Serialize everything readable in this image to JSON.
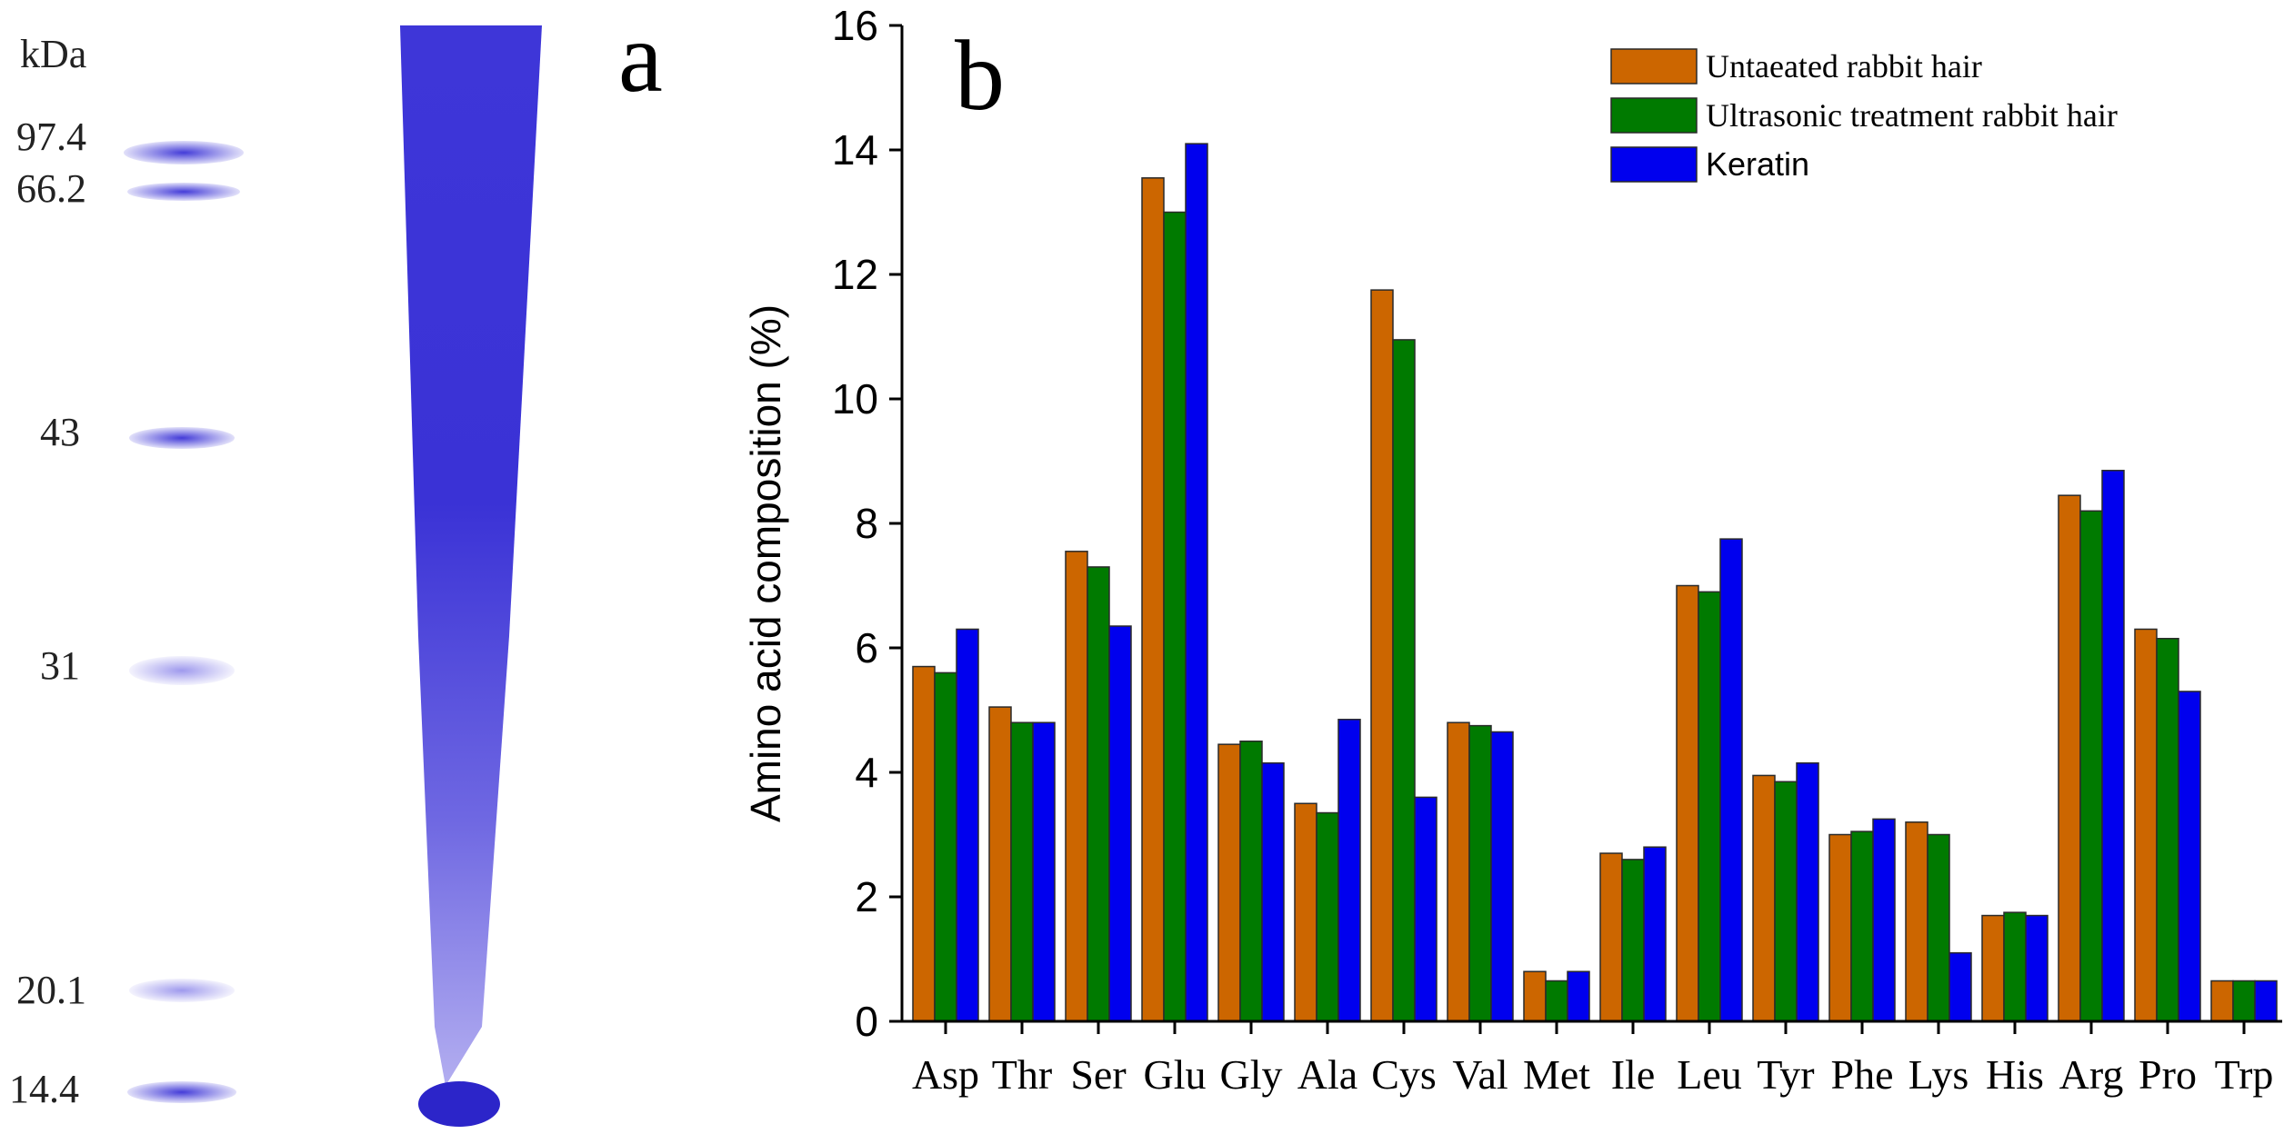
{
  "panel_a": {
    "label": "a",
    "unit": "kDa",
    "markers": [
      "97.4",
      "66.2",
      "43",
      "31",
      "20.1",
      "14.4"
    ],
    "colors": {
      "band": "#3a32d6",
      "lane": "#3b34d8",
      "lane_light": "#b9b5f2"
    }
  },
  "panel_b": {
    "label": "b"
  },
  "chart_data": {
    "type": "bar",
    "title": "",
    "xlabel": "",
    "ylabel": "Amino acid composition (%)",
    "ylim": [
      0,
      16
    ],
    "yticks": [
      "0",
      "2",
      "4",
      "6",
      "8",
      "10",
      "12",
      "14",
      "16"
    ],
    "categories": [
      "Asp",
      "Thr",
      "Ser",
      "Glu",
      "Gly",
      "Ala",
      "Cys",
      "Val",
      "Met",
      "Ile",
      "Leu",
      "Tyr",
      "Phe",
      "Lys",
      "His",
      "Arg",
      "Pro",
      "Trp"
    ],
    "series": [
      {
        "name": "Untaeated rabbit hair",
        "color": "#cc6600",
        "values": [
          5.7,
          5.05,
          7.55,
          13.55,
          4.45,
          3.5,
          11.75,
          4.8,
          0.8,
          2.7,
          7.0,
          3.95,
          3.0,
          3.2,
          1.7,
          8.45,
          6.3,
          0.65
        ]
      },
      {
        "name": "Ultrasonic treatment rabbit hair",
        "color": "#007a00",
        "values": [
          5.6,
          4.8,
          7.3,
          13.0,
          4.5,
          3.35,
          10.95,
          4.75,
          0.65,
          2.6,
          6.9,
          3.85,
          3.05,
          3.0,
          1.75,
          8.2,
          6.15,
          0.65
        ]
      },
      {
        "name": "Keratin",
        "color": "#0000ee",
        "values": [
          6.3,
          4.8,
          6.35,
          14.1,
          4.15,
          4.85,
          3.6,
          4.65,
          0.8,
          2.8,
          7.75,
          4.15,
          3.25,
          1.1,
          1.7,
          8.85,
          5.3,
          0.65
        ]
      }
    ],
    "legend_position": "top-right",
    "grid": false
  }
}
